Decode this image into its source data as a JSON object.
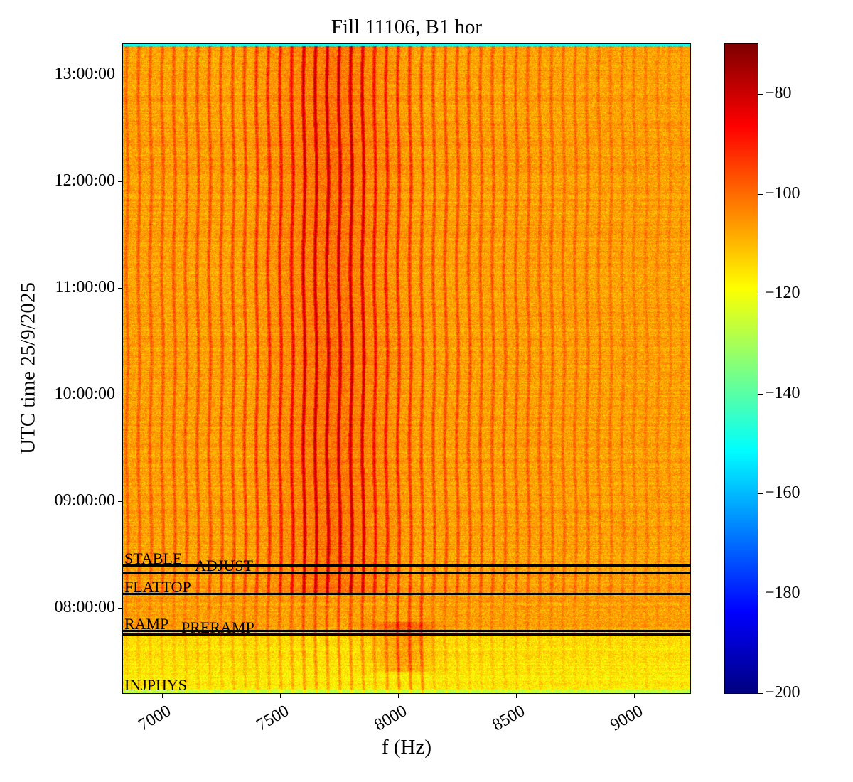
{
  "chart_data": {
    "type": "heatmap",
    "title": "Fill 11106, B1 hor",
    "xlabel": "f (Hz)",
    "ylabel": "UTC time 25/9/2025",
    "xlim": [
      6834,
      9238
    ],
    "ylim": [
      "07:12:00",
      "13:17:00"
    ],
    "x_ticks": [
      7000,
      7500,
      8000,
      8500,
      9000
    ],
    "x_tick_labels": [
      "7000",
      "7500",
      "8000",
      "8500",
      "9000"
    ],
    "y_ticks": [
      "08:00:00",
      "09:00:00",
      "10:00:00",
      "11:00:00",
      "12:00:00",
      "13:00:00"
    ],
    "colormap": "jet",
    "colorbar": {
      "range": [
        -200,
        -70
      ],
      "ticks": [
        -80,
        -100,
        -120,
        -140,
        -160,
        -180,
        -200
      ],
      "tick_labels": [
        "−80",
        "−100",
        "−120",
        "−140",
        "−160",
        "−180",
        "−200"
      ]
    },
    "events": [
      {
        "label": "STABLE",
        "time": "08:24"
      },
      {
        "label": "ADJUST",
        "time": "08:20"
      },
      {
        "label": "FLATTOP",
        "time": "08:08"
      },
      {
        "label": "RAMP",
        "time": "07:47"
      },
      {
        "label": "PRERAMP",
        "time": "07:45"
      },
      {
        "label": "INJPHYS",
        "time": "07:12"
      }
    ],
    "grid": false
  }
}
